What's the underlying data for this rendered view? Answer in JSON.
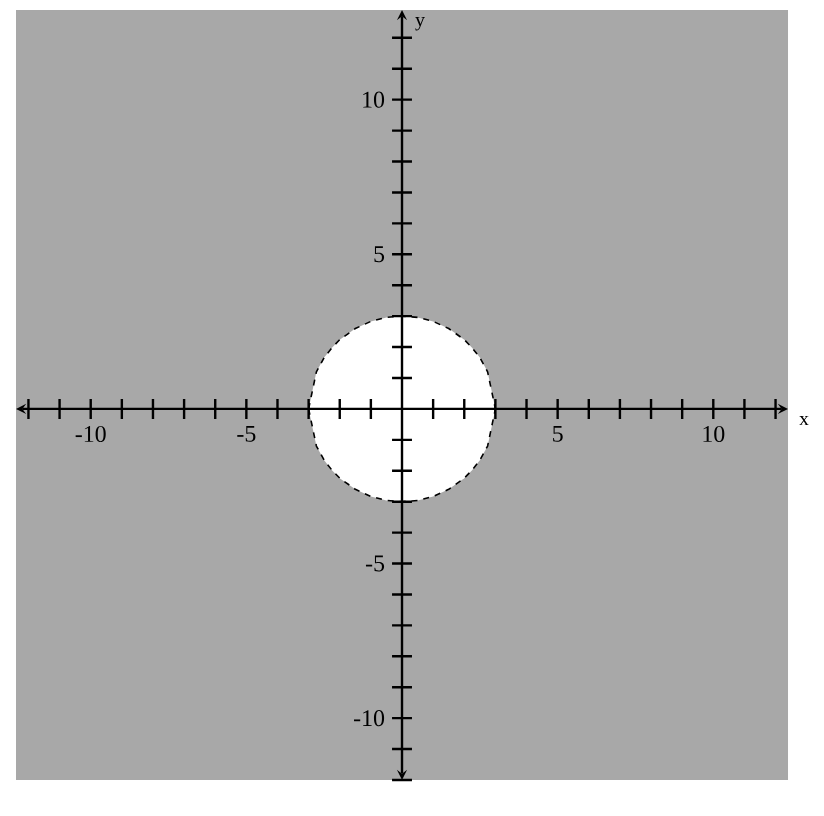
{
  "chart_data": {
    "type": "area",
    "xlabel": "x",
    "ylabel": "y",
    "x": [
      -3,
      -2.75,
      -2.5,
      -2.25,
      -2,
      -1.5,
      -1,
      -0.5,
      0,
      0.5,
      1,
      1.5,
      2,
      2.25,
      2.5,
      2.75,
      3
    ],
    "series": [
      {
        "color": "#ffffff",
        "values": [
          0,
          1.2,
          1.66,
          1.98,
          2.24,
          2.6,
          2.83,
          2.96,
          3,
          2.96,
          2.83,
          2.6,
          2.24,
          1.98,
          1.66,
          1.2,
          0
        ]
      },
      {
        "color": "#ffffff",
        "values": [
          0,
          -1.2,
          -1.66,
          -1.98,
          -2.24,
          -2.6,
          -2.83,
          -2.96,
          -3,
          -2.96,
          -2.83,
          -2.6,
          -2.24,
          -1.98,
          -1.66,
          -1.2,
          0
        ]
      }
    ],
    "line_style": "dashed",
    "xlim": [
      -12.4,
      12.4
    ],
    "ylim": [
      -12,
      12.9
    ],
    "xticks": [
      {
        "value": -12,
        "label": null
      },
      {
        "value": -11,
        "label": null
      },
      -10,
      {
        "value": -9,
        "label": null
      },
      {
        "value": -8,
        "label": null
      },
      {
        "value": -7,
        "label": null
      },
      {
        "value": -6,
        "label": null
      },
      -5,
      {
        "value": -4,
        "label": null
      },
      {
        "value": -3,
        "label": null
      },
      {
        "value": -2,
        "label": null
      },
      {
        "value": -1,
        "label": null
      },
      {
        "value": 1,
        "label": null
      },
      {
        "value": 2,
        "label": null
      },
      {
        "value": 3,
        "label": null
      },
      {
        "value": 4,
        "label": null
      },
      5,
      {
        "value": 6,
        "label": null
      },
      {
        "value": 7,
        "label": null
      },
      {
        "value": 8,
        "label": null
      },
      {
        "value": 9,
        "label": null
      },
      10,
      {
        "value": 11,
        "label": null
      },
      {
        "value": 12,
        "label": null
      }
    ],
    "yticks": [
      {
        "value": -12,
        "label": null
      },
      {
        "value": -11,
        "label": null
      },
      -10,
      {
        "value": -9,
        "label": null
      },
      {
        "value": -8,
        "label": null
      },
      {
        "value": -7,
        "label": null
      },
      {
        "value": -6,
        "label": null
      },
      -5,
      {
        "value": -4,
        "label": null
      },
      {
        "value": -3,
        "label": null
      },
      {
        "value": -2,
        "label": null
      },
      {
        "value": -1,
        "label": null
      },
      {
        "value": 1,
        "label": null
      },
      {
        "value": 2,
        "label": null
      },
      {
        "value": 3,
        "label": null
      },
      {
        "value": 4,
        "label": null
      },
      5,
      {
        "value": 6,
        "label": null
      },
      {
        "value": 7,
        "label": null
      },
      {
        "value": 8,
        "label": null
      },
      {
        "value": 9,
        "label": null
      },
      10,
      {
        "value": 11,
        "label": null
      },
      {
        "value": 12,
        "label": null
      }
    ],
    "bands": [
      {
        "axis": "x",
        "from": -12.4,
        "to": 12.4,
        "color": "#a8a8a8"
      }
    ]
  }
}
